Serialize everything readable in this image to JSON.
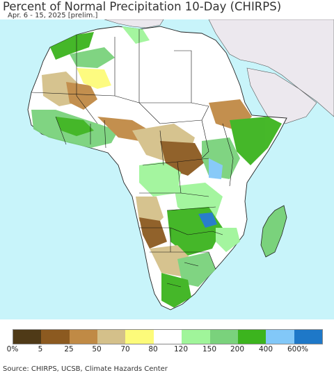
{
  "header": {
    "title": "Percent of Normal Precipitation 10-Day (CHIRPS)",
    "subtitle": "Apr. 6 - 15, 2025 [prelim.]"
  },
  "map": {
    "region": "Africa",
    "ocean_color": "#c8f4fa",
    "land_nodata_color": "#ffffff",
    "outside_region_color": "#ece8ee",
    "border_color": "#000000"
  },
  "legend": {
    "colors": [
      "#4f3a17",
      "#8c5a20",
      "#c08a45",
      "#d4c08a",
      "#fdfb7a",
      "#ffffff",
      "#a0f59a",
      "#7ad27c",
      "#3cb41e",
      "#82c8f8",
      "#1e78c8"
    ],
    "labels": [
      "0%",
      "5",
      "25",
      "50",
      "70",
      "80",
      "120",
      "150",
      "200",
      "400",
      "600%"
    ]
  },
  "footer": {
    "source": "Source: CHIRPS, UCSB, Climate Hazards Center"
  }
}
